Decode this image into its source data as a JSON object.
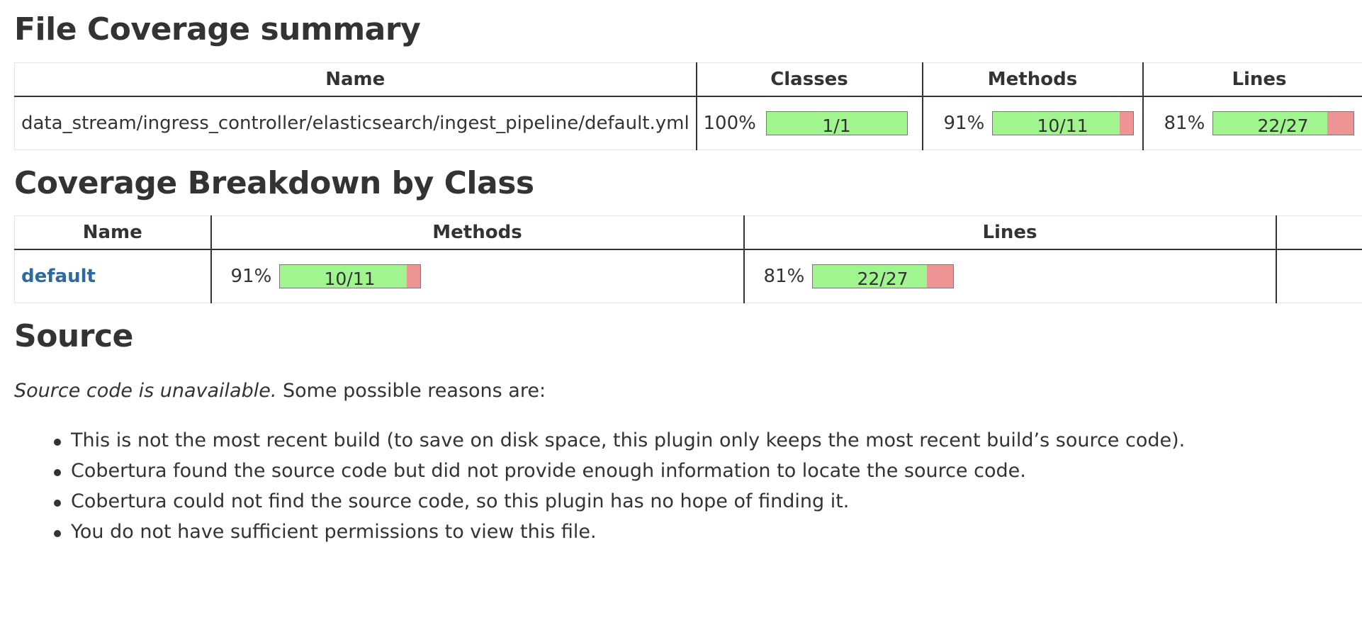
{
  "summary": {
    "title": "File Coverage summary",
    "headers": [
      "Name",
      "Classes",
      "Methods",
      "Lines"
    ],
    "row": {
      "name": "data_stream/ingress_controller/elasticsearch/ingest_pipeline/default.yml",
      "classes": {
        "pct": "100%",
        "ratio": "1/1",
        "fraction": 1.0
      },
      "methods": {
        "pct": "91%",
        "ratio": "10/11",
        "fraction": 0.909
      },
      "lines": {
        "pct": "81%",
        "ratio": "22/27",
        "fraction": 0.815
      }
    }
  },
  "breakdown": {
    "title": "Coverage Breakdown by Class",
    "headers": [
      "Name",
      "Methods",
      "Lines",
      ""
    ],
    "row": {
      "name": "default",
      "methods": {
        "pct": "91%",
        "ratio": "10/11",
        "fraction": 0.909
      },
      "lines": {
        "pct": "81%",
        "ratio": "22/27",
        "fraction": 0.815
      }
    }
  },
  "source": {
    "title": "Source",
    "intro_em": "Source code is unavailable.",
    "intro_rest": " Some possible reasons are:",
    "reasons": [
      "This is not the most recent build (to save on disk space, this plugin only keeps the most recent build’s source code).",
      "Cobertura found the source code but did not provide enough information to locate the source code.",
      "Cobertura could not find the source code, so this plugin has no hope of finding it.",
      "You do not have sufficient permissions to view this file."
    ]
  },
  "colors": {
    "covered": "#a0f58e",
    "uncovered": "#ee9494",
    "link": "#2c6a9f",
    "text": "#333333"
  }
}
